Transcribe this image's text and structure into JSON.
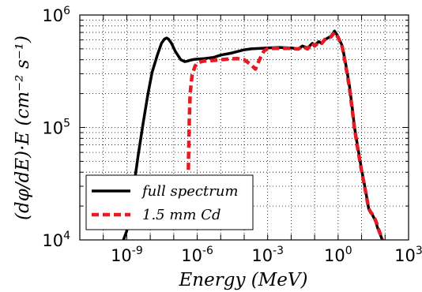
{
  "chart_data": {
    "type": "line",
    "xscale": "log",
    "yscale": "log",
    "xlim": [
      1e-11,
      1000
    ],
    "ylim": [
      10000,
      1000000
    ],
    "grid": true,
    "legend_position": "lower-left",
    "xlabel": "Energy (MeV)",
    "ylabel": "(dφ/dE)·E (cm⁻² s⁻¹)",
    "x_tick_labels": [
      {
        "value": 1e-09,
        "base": "10",
        "exp": "-9"
      },
      {
        "value": 1e-06,
        "base": "10",
        "exp": "-6"
      },
      {
        "value": 0.001,
        "base": "10",
        "exp": "-3"
      },
      {
        "value": 1,
        "base": "10",
        "exp": "0"
      },
      {
        "value": 1000,
        "base": "10",
        "exp": "3"
      }
    ],
    "y_tick_labels": [
      {
        "value": 10000,
        "base": "10",
        "exp": "4"
      },
      {
        "value": 100000,
        "base": "10",
        "exp": "5"
      },
      {
        "value": 1000000,
        "base": "10",
        "exp": "6"
      }
    ],
    "series": [
      {
        "name": "full spectrum",
        "color": "#000000",
        "style": "solid",
        "x": [
          6e-10,
          1e-09,
          1.5e-09,
          2e-09,
          3e-09,
          5e-09,
          8e-09,
          1.2e-08,
          2e-08,
          3e-08,
          4e-08,
          5e-08,
          6e-08,
          8e-08,
          1.2e-07,
          2e-07,
          3e-07,
          4e-07,
          5e-07,
          7e-07,
          1e-06,
          2e-06,
          5e-06,
          1e-05,
          3e-05,
          0.0001,
          0.0002,
          0.0005,
          0.001,
          0.003,
          0.01,
          0.02,
          0.03,
          0.05,
          0.08,
          0.1,
          0.15,
          0.2,
          0.3,
          0.5,
          0.7,
          1.0,
          1.5,
          2,
          3,
          4,
          5,
          7,
          10,
          15,
          20,
          25,
          30,
          40,
          50,
          70,
          90
        ],
        "y": [
          9000,
          12000,
          20000,
          30000,
          55000,
          110000,
          200000,
          310000,
          440000,
          560000,
          610000,
          625000,
          610000,
          560000,
          470000,
          400000,
          385000,
          390000,
          396000,
          402000,
          405000,
          410000,
          420000,
          440000,
          460000,
          490000,
          500000,
          505000,
          510000,
          515000,
          510000,
          500000,
          530000,
          510000,
          560000,
          540000,
          580000,
          560000,
          610000,
          650000,
          720000,
          640000,
          530000,
          390000,
          240000,
          150000,
          100000,
          65000,
          42000,
          27000,
          19000,
          17500,
          16500,
          14500,
          12500,
          10500,
          9000
        ]
      },
      {
        "name": "1.5 mm Cd",
        "color": "#e31c23",
        "style": "dashed",
        "x": [
          4.2e-07,
          4.3e-07,
          4.6e-07,
          5e-07,
          6e-07,
          8e-07,
          1e-06,
          1.5e-06,
          2e-06,
          3e-06,
          5e-06,
          1e-05,
          2e-05,
          5e-05,
          0.0001,
          0.0002,
          0.0003,
          0.0004,
          0.0005,
          0.0007,
          0.001,
          0.002,
          0.005,
          0.01,
          0.02,
          0.03,
          0.05,
          0.08,
          0.1,
          0.15,
          0.2,
          0.3,
          0.5,
          0.7,
          1.0,
          1.5,
          2,
          3,
          4,
          5,
          7,
          10,
          15,
          20,
          25,
          30,
          40,
          50,
          70,
          90
        ],
        "y": [
          42000,
          60000,
          120000,
          200000,
          290000,
          350000,
          375000,
          385000,
          390000,
          392000,
          395000,
          400000,
          405000,
          410000,
          400000,
          360000,
          330000,
          380000,
          420000,
          480000,
          500000,
          505000,
          505000,
          505000,
          498000,
          525000,
          500000,
          560000,
          530000,
          570000,
          560000,
          620000,
          640000,
          700000,
          630000,
          520000,
          380000,
          230000,
          145000,
          98000,
          63000,
          41000,
          26500,
          19000,
          17500,
          16800,
          14800,
          12800,
          10600,
          9000
        ]
      }
    ]
  }
}
